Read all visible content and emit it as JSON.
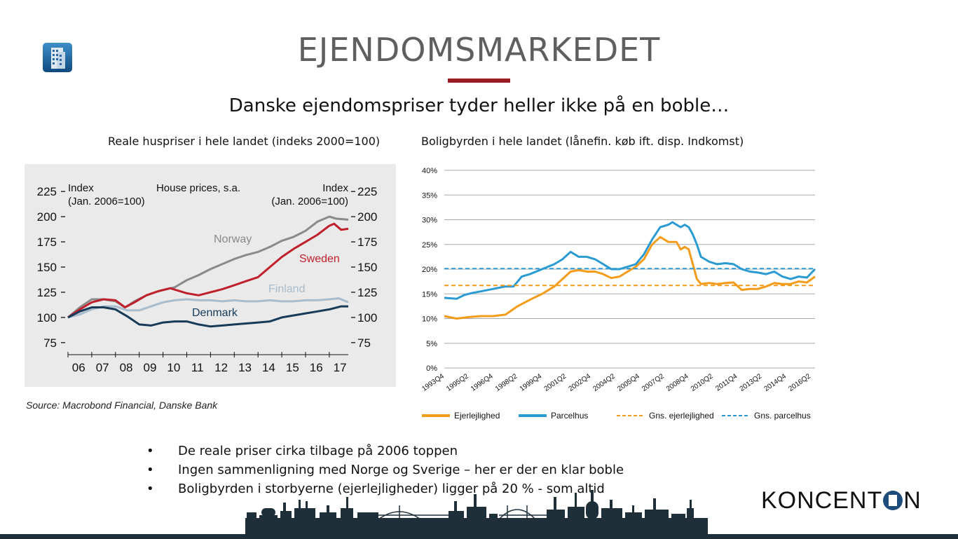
{
  "slide": {
    "title": "EJENDOMSMARKEDET",
    "subtitle": "Danske ejendomspriser tyder heller ikke på en boble…",
    "brand": {
      "left": "KONCENT",
      "right": "N"
    },
    "accent_color": "#9b1b24",
    "logo_icon": "building-icon"
  },
  "bullets": [
    "De reale priser cirka tilbage på 2006 toppen",
    "Ingen sammenligning med Norge og Sverige – her er der en klar boble",
    "Boligbyrden i storbyerne (ejerlejligheder) ligger på 20 % - som altid"
  ],
  "bullet_symbol": "•",
  "chart_data": [
    {
      "type": "line",
      "caption": "Reale huspriser i hele landet (indeks 2000=100)",
      "title": "House prices, s.a.",
      "left_axis_label": "Index\n(Jan. 2006=100)",
      "right_axis_label": "Index\n(Jan. 2006=100)",
      "source": "Source: Macrobond Financial, Danske Bank",
      "x_ticks": [
        "06",
        "07",
        "08",
        "09",
        "10",
        "11",
        "12",
        "13",
        "14",
        "15",
        "16",
        "17"
      ],
      "x_range": [
        2006,
        2017.8
      ],
      "y_ticks": [
        75,
        100,
        125,
        150,
        175,
        200,
        225
      ],
      "ylim": [
        70,
        230
      ],
      "grid": false,
      "background": "#eaeaea",
      "series": [
        {
          "name": "Norway",
          "color": "#8a8a8a",
          "x": [
            2006,
            2006.5,
            2007,
            2007.5,
            2008,
            2008.4,
            2008.8,
            2009.3,
            2009.8,
            2010.5,
            2011,
            2011.5,
            2012,
            2012.5,
            2013,
            2013.5,
            2014,
            2014.5,
            2015,
            2015.5,
            2016,
            2016.5,
            2017,
            2017.3,
            2017.8
          ],
          "y": [
            100,
            110,
            118,
            118,
            116,
            110,
            116,
            122,
            126,
            130,
            137,
            142,
            148,
            153,
            158,
            162,
            165,
            170,
            176,
            180,
            186,
            195,
            200,
            198,
            197
          ]
        },
        {
          "name": "Sweden",
          "color": "#c0202b",
          "x": [
            2006,
            2006.5,
            2007,
            2007.5,
            2008,
            2008.4,
            2008.8,
            2009.3,
            2009.8,
            2010.3,
            2011,
            2011.5,
            2012,
            2012.5,
            2013,
            2013.5,
            2014,
            2014.5,
            2015,
            2015.5,
            2016,
            2016.5,
            2017,
            2017.2,
            2017.5,
            2017.8
          ],
          "y": [
            100,
            108,
            115,
            118,
            117,
            110,
            115,
            122,
            126,
            129,
            124,
            122,
            125,
            128,
            132,
            136,
            140,
            150,
            160,
            168,
            175,
            182,
            191,
            193,
            187,
            188
          ]
        },
        {
          "name": "Finland",
          "color": "#a7bccd",
          "x": [
            2006,
            2006.5,
            2007,
            2007.5,
            2008,
            2008.5,
            2009,
            2009.5,
            2010,
            2010.5,
            2011,
            2011.5,
            2012,
            2012.5,
            2013,
            2013.5,
            2014,
            2014.5,
            2015,
            2015.5,
            2016,
            2016.5,
            2017,
            2017.4,
            2017.8
          ],
          "y": [
            100,
            103,
            108,
            111,
            111,
            107,
            107,
            111,
            115,
            117,
            118,
            117,
            117,
            116,
            117,
            116,
            116,
            117,
            116,
            116,
            117,
            117,
            118,
            119,
            115
          ]
        },
        {
          "name": "Denmark",
          "color": "#163a58",
          "x": [
            2006,
            2006.5,
            2007,
            2007.5,
            2008,
            2008.5,
            2009,
            2009.5,
            2010,
            2010.5,
            2011,
            2011.5,
            2012,
            2012.5,
            2013,
            2013.5,
            2014,
            2014.5,
            2015,
            2015.5,
            2016,
            2016.5,
            2017,
            2017.5,
            2017.8
          ],
          "y": [
            100,
            106,
            110,
            110,
            108,
            101,
            93,
            92,
            95,
            96,
            96,
            93,
            91,
            92,
            93,
            94,
            95,
            96,
            100,
            102,
            104,
            106,
            108,
            111,
            111
          ]
        }
      ],
      "series_label_colors": {
        "Norway": "#8a8a8a",
        "Sweden": "#c0202b",
        "Finland": "#a7bccd",
        "Denmark": "#163a58"
      }
    },
    {
      "type": "line",
      "caption": "Boligbyrden i hele landet (lånefin. køb ift. disp. Indkomst)",
      "x_ticks": [
        "1993Q4",
        "1995Q2",
        "1996Q4",
        "1998Q2",
        "1999Q4",
        "2001Q2",
        "2002Q4",
        "2004Q2",
        "2005Q4",
        "2007Q2",
        "2008Q4",
        "2010Q2",
        "2011Q4",
        "2013Q2",
        "2014Q4",
        "2016Q2"
      ],
      "x_range": [
        1993.75,
        2016.5
      ],
      "y_ticks": [
        "0%",
        "5%",
        "10%",
        "15%",
        "20%",
        "25%",
        "30%",
        "35%",
        "40%"
      ],
      "ylim": [
        0,
        40
      ],
      "grid": true,
      "legend_placement": "bottom",
      "series": [
        {
          "name": "Ejerlejlighed",
          "color": "#f39c1c",
          "style": "solid",
          "x": [
            1993.75,
            1994.5,
            1995.25,
            1996,
            1996.75,
            1997.5,
            1998.25,
            1999,
            1999.75,
            2000.5,
            2001,
            2001.5,
            2002,
            2002.5,
            2003,
            2003.5,
            2004,
            2004.5,
            2005,
            2005.5,
            2006,
            2006.5,
            2007,
            2007.5,
            2008,
            2008.25,
            2008.5,
            2008.75,
            2009,
            2009.25,
            2009.5,
            2010,
            2010.5,
            2011,
            2011.5,
            2012,
            2012.5,
            2013,
            2013.5,
            2014,
            2014.5,
            2015,
            2015.5,
            2016,
            2016.5
          ],
          "y": [
            10.5,
            10.0,
            10.3,
            10.5,
            10.5,
            10.8,
            12.5,
            13.8,
            15.0,
            16.5,
            18.0,
            19.5,
            19.8,
            19.5,
            19.5,
            19.0,
            18.2,
            18.5,
            19.5,
            20.5,
            22.0,
            25.0,
            26.5,
            25.5,
            25.5,
            24.0,
            24.5,
            24.0,
            21.0,
            18.0,
            17.0,
            17.2,
            17.0,
            17.2,
            17.3,
            15.8,
            16.0,
            16.0,
            16.5,
            17.2,
            17.0,
            17.0,
            17.5,
            17.3,
            18.5
          ]
        },
        {
          "name": "Parcelhus",
          "color": "#2a9bd2",
          "style": "solid",
          "x": [
            1993.75,
            1994.5,
            1995,
            1995.5,
            1996,
            1996.75,
            1997.5,
            1998,
            1998.5,
            1999,
            1999.75,
            2000.5,
            2001,
            2001.5,
            2002,
            2002.5,
            2003,
            2003.5,
            2004,
            2004.5,
            2005,
            2005.5,
            2006,
            2006.5,
            2007,
            2007.5,
            2007.75,
            2008,
            2008.25,
            2008.5,
            2008.75,
            2009,
            2009.25,
            2009.5,
            2010,
            2010.5,
            2011,
            2011.5,
            2012,
            2012.5,
            2013,
            2013.5,
            2014,
            2014.5,
            2015,
            2015.5,
            2016,
            2016.5
          ],
          "y": [
            14.2,
            14.0,
            14.8,
            15.2,
            15.5,
            16.0,
            16.5,
            16.5,
            18.5,
            19.0,
            20.0,
            21.0,
            22.0,
            23.5,
            22.5,
            22.5,
            22.0,
            21.0,
            20.0,
            20.0,
            20.5,
            21.0,
            23.0,
            26.0,
            28.5,
            29.0,
            29.5,
            29.0,
            28.5,
            29.0,
            28.5,
            27.0,
            25.0,
            22.5,
            21.5,
            21.0,
            21.2,
            21.0,
            20.0,
            19.5,
            19.3,
            19.0,
            19.5,
            18.5,
            18.0,
            18.5,
            18.3,
            20.0
          ]
        },
        {
          "name": "Gns. ejerlejlighed",
          "color": "#f39c1c",
          "style": "dashed",
          "x": [
            1993.75,
            2016.5
          ],
          "y": [
            16.7,
            16.7
          ]
        },
        {
          "name": "Gns. parcelhus",
          "color": "#2a9bd2",
          "style": "dashed",
          "x": [
            1993.75,
            2016.5
          ],
          "y": [
            20.1,
            20.1
          ]
        }
      ]
    }
  ]
}
